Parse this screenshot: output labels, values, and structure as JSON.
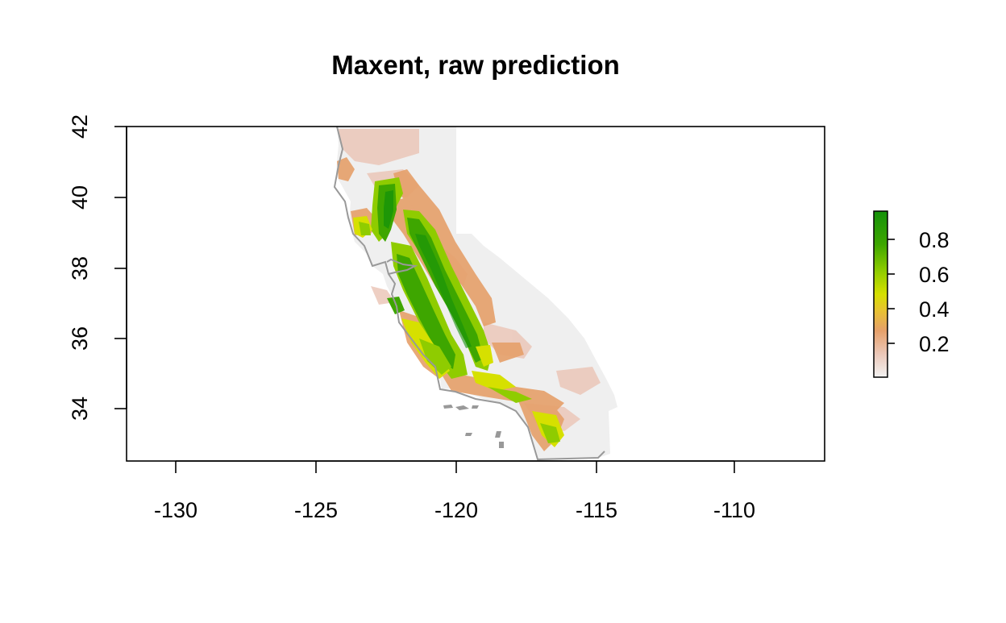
{
  "map": {
    "title": "Maxent, raw prediction",
    "x_axis": {
      "range": [
        -132,
        -106.8
      ],
      "ticks": [
        "-130",
        "-125",
        "-120",
        "-115",
        "-110"
      ],
      "tick_values": [
        -130,
        -125,
        -120,
        -115,
        -110
      ]
    },
    "y_axis": {
      "range": [
        32.5,
        42
      ],
      "ticks": [
        "34",
        "36",
        "38",
        "40",
        "42"
      ],
      "tick_values": [
        34,
        36,
        38,
        40,
        42
      ]
    },
    "legend": {
      "type": "continuous-color-ramp",
      "range": [
        0,
        0.95
      ],
      "ticks": [
        "0.2",
        "0.4",
        "0.6",
        "0.8"
      ],
      "tick_values": [
        0.2,
        0.4,
        0.6,
        0.8
      ],
      "colors": [
        "#f2f2f2",
        "#ebc7b8",
        "#e6a06a",
        "#e8c232",
        "#d6e000",
        "#8fcc00",
        "#3ea600",
        "#14910a"
      ]
    },
    "layers": {
      "background_raster_color": "#efefef",
      "boundary_color": "#999999",
      "island_color": "#999999"
    }
  }
}
